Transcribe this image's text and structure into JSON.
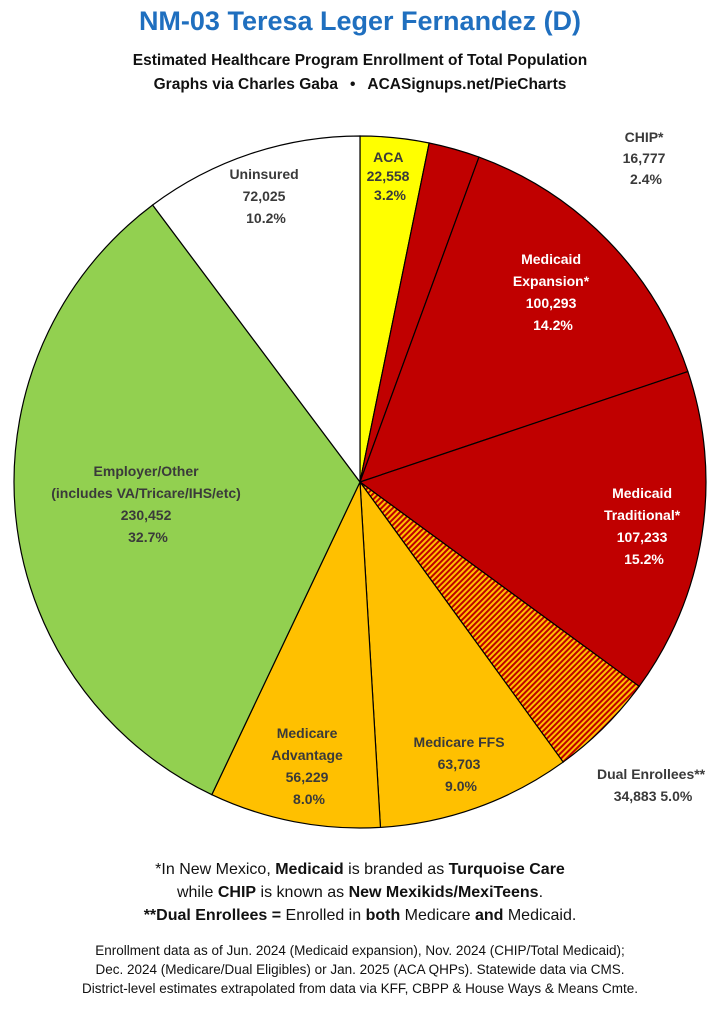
{
  "title": "NM-03 Teresa Leger Fernandez (D)",
  "subtitle": "Estimated Healthcare Program Enrollment of Total Population",
  "credit": {
    "left": "Graphs via Charles Gaba",
    "bullet": "•",
    "right": "ACASignups.net/PieCharts"
  },
  "colors": {
    "aca": "#ffff00",
    "medicaid": "#c00000",
    "dual": "#d44000",
    "medicare": "#ffc000",
    "employer": "#92d050",
    "uninsured": "#ffffff",
    "title": "#1f6fbf"
  },
  "chart_data": {
    "type": "pie",
    "title": "NM-03 Teresa Leger Fernandez (D)",
    "start_angle_deg": 0,
    "direction": "clockwise",
    "slices": [
      {
        "label": "ACA",
        "value": 22558,
        "value_text": "22,558",
        "percent": "3.2%",
        "color": "#ffff00",
        "pattern": "solid"
      },
      {
        "label": "CHIP*",
        "value": 16777,
        "value_text": "16,777",
        "percent": "2.4%",
        "color": "#c00000",
        "pattern": "solid"
      },
      {
        "label": "Medicaid Expansion*",
        "value": 100293,
        "value_text": "100,293",
        "percent": "14.2%",
        "color": "#c00000",
        "pattern": "solid"
      },
      {
        "label": "Medicaid Traditional*",
        "value": 107233,
        "value_text": "107,233",
        "percent": "15.2%",
        "color": "#c00000",
        "pattern": "solid"
      },
      {
        "label": "Dual Enrollees**",
        "value": 34883,
        "value_text": "34,883",
        "percent": "5.0%",
        "color": "#ffc000",
        "pattern": "stripes-red-orange"
      },
      {
        "label": "Medicare FFS",
        "value": 63703,
        "value_text": "63,703",
        "percent": "9.0%",
        "color": "#ffc000",
        "pattern": "solid"
      },
      {
        "label": "Medicare Advantage",
        "value": 56229,
        "value_text": "56,229",
        "percent": "8.0%",
        "color": "#ffc000",
        "pattern": "solid"
      },
      {
        "label": "Employer/Other (includes VA/Tricare/IHS/etc)",
        "value": 230452,
        "value_text": "230,452",
        "percent": "32.7%",
        "color": "#92d050",
        "pattern": "solid"
      },
      {
        "label": "Uninsured",
        "value": 72025,
        "value_text": "72,025",
        "percent": "10.2%",
        "color": "#ffffff",
        "pattern": "solid"
      }
    ]
  },
  "labels": {
    "aca": [
      "ACA",
      "22,558",
      "3.2%"
    ],
    "chip": [
      "CHIP*",
      "16,777",
      "2.4%"
    ],
    "expansion": [
      "Medicaid",
      "Expansion*",
      "100,293",
      "14.2%"
    ],
    "traditional": [
      "Medicaid",
      "Traditional*",
      "107,233",
      "15.2%"
    ],
    "dual": [
      "Dual Enrollees**",
      "34,883 5.0%"
    ],
    "ffs": [
      "Medicare FFS",
      "63,703",
      "9.0%"
    ],
    "advantage": [
      "Medicare",
      "Advantage",
      "56,229",
      "8.0%"
    ],
    "employer": [
      "Employer/Other",
      "(includes VA/Tricare/IHS/etc)",
      "230,452",
      "32.7%"
    ],
    "uninsured": [
      "Uninsured",
      "72,025",
      "10.2%"
    ]
  },
  "notes": {
    "n1_a": "*In New Mexico, ",
    "n1_b": "Medicaid",
    "n1_c": " is branded as ",
    "n1_d": "Turquoise Care",
    "n2_a": "while ",
    "n2_b": "CHIP",
    "n2_c": " is known as ",
    "n2_d": "New Mexikids/MexiTeens",
    "n2_e": ".",
    "n3_a": "**Dual Enrollees = ",
    "n3_b": "Enrolled in ",
    "n3_c": "both",
    "n3_d": " Medicare ",
    "n3_e": "and",
    "n3_f": " Medicaid."
  },
  "source": {
    "line1": "Enrollment data as of Jun. 2024 (Medicaid expansion), Nov. 2024 (CHIP/Total Medicaid);",
    "line2": "Dec. 2024 (Medicare/Dual Eligibles) or Jan. 2025 (ACA QHPs). Statewide data via CMS.",
    "line3": "District-level estimates extrapolated from data via KFF, CBPP & House Ways & Means Cmte."
  }
}
